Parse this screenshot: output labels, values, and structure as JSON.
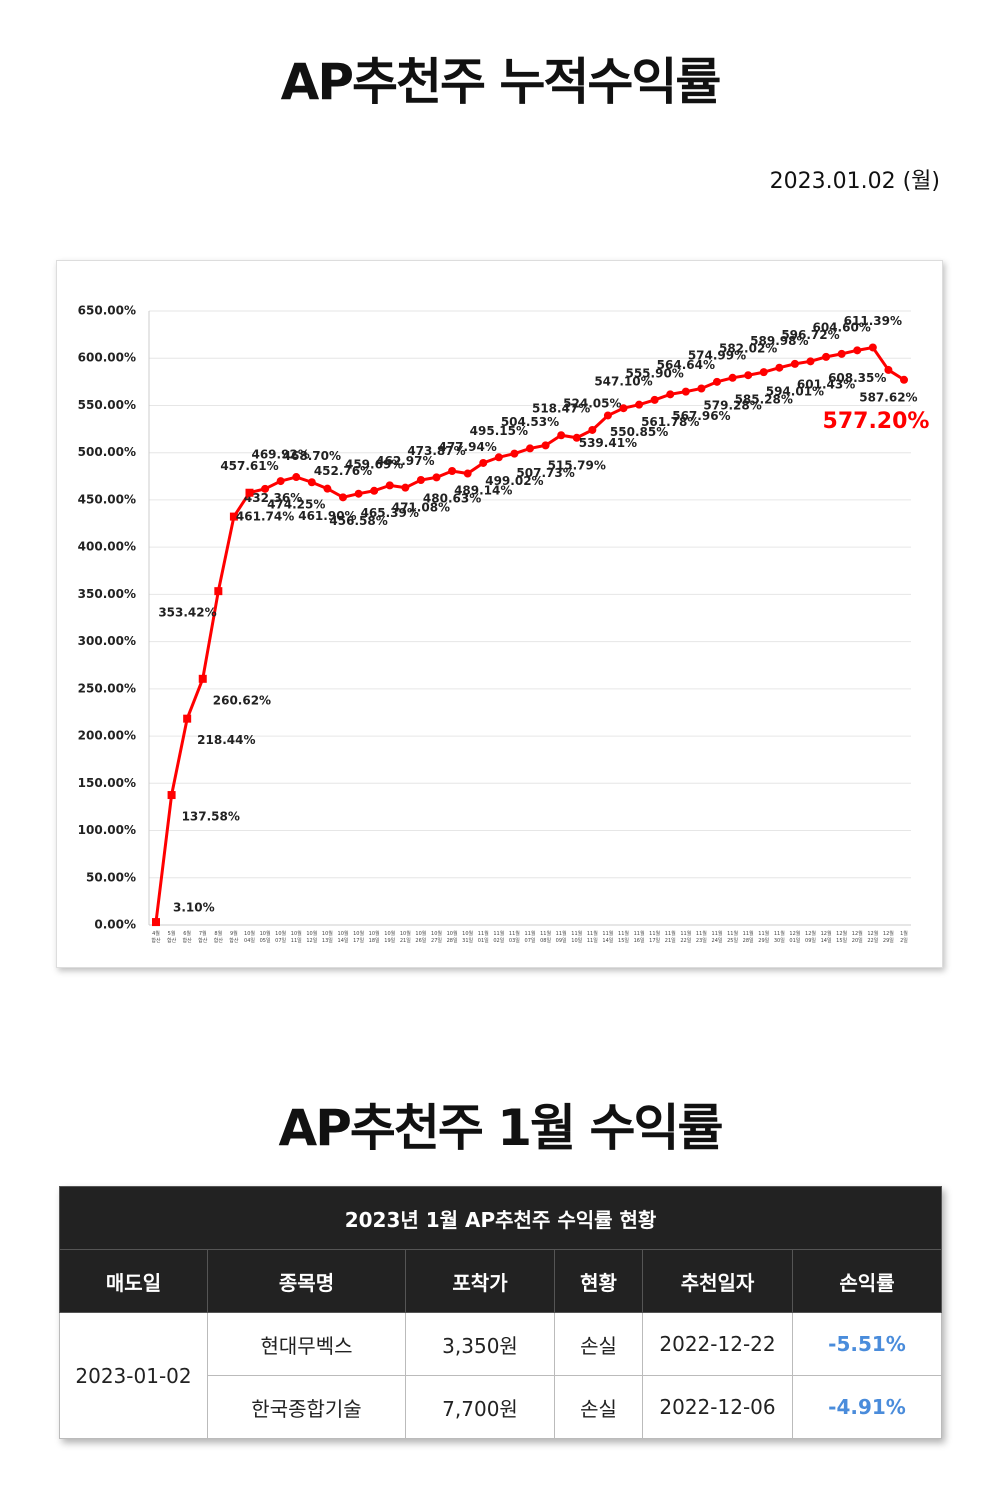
{
  "header": {
    "title": "AP추천주 누적수익률",
    "date": "2023.01.02 (월)"
  },
  "chart_data": {
    "type": "line",
    "categories": [
      "4월 합산",
      "5월 합산",
      "6월 합산",
      "7월 합산",
      "8월 합산",
      "9월 합산",
      "10월 04일",
      "10월 05일",
      "10월 07일",
      "10월 11일",
      "10월 12일",
      "10월 13일",
      "10월 14일",
      "10월 17일",
      "10월 18일",
      "10월 19일",
      "10월 21일",
      "10월 26일",
      "10월 27일",
      "10월 28일",
      "10월 31일",
      "11월 01일",
      "11월 02일",
      "11월 03일",
      "11월 07일",
      "11월 08일",
      "11월 09일",
      "11월 10일",
      "11월 11일",
      "11월 14일",
      "11월 15일",
      "11월 16일",
      "11월 17일",
      "11월 21일",
      "11월 22일",
      "11월 23일",
      "11월 24일",
      "11월 25일",
      "11월 28일",
      "11월 29일",
      "11월 30일",
      "12월 01일",
      "12월 09일",
      "12월 14일",
      "12월 15일",
      "12월 20일",
      "12월 22일",
      "12월 29일",
      "1월 2일"
    ],
    "series": [
      {
        "color": "#ff0000",
        "values": [
          3.1,
          137.58,
          218.44,
          260.62,
          353.42,
          432.36,
          457.61,
          461.74,
          469.92,
          474.25,
          468.7,
          461.9,
          452.76,
          456.58,
          459.69,
          465.39,
          462.97,
          471.08,
          473.87,
          480.63,
          477.94,
          489.14,
          495.15,
          499.02,
          504.53,
          507.73,
          518.47,
          515.79,
          524.05,
          539.41,
          547.1,
          550.85,
          555.9,
          561.78,
          564.64,
          567.96,
          574.99,
          579.28,
          582.02,
          585.28,
          589.98,
          594.01,
          596.72,
          601.43,
          604.6,
          608.35,
          611.39,
          587.62,
          577.2
        ],
        "value_labels": [
          "3.10%",
          "137.58%",
          "218.44%",
          "260.62%",
          "353.42%",
          "432.36%",
          "457.61%",
          "461.74%",
          "469.92%",
          "474.25%",
          "468.70%",
          "461.90%",
          "452.76%",
          "456.58%",
          "459.69%",
          "465.39%",
          "462.97%",
          "471.08%",
          "473.87%",
          "480.63%",
          "477.94%",
          "489.14%",
          "495.15%",
          "499.02%",
          "504.53%",
          "507.73%",
          "518.47%",
          "515.79%",
          "524.05%",
          "539.41%",
          "547.10%",
          "550.85%",
          "555.90%",
          "561.78%",
          "564.64%",
          "567.96%",
          "574.99%",
          "579.28%",
          "582.02%",
          "585.28%",
          "589.98%",
          "594.01%",
          "596.72%",
          "601.43%",
          "604.60%",
          "608.35%",
          "611.39%",
          "587.62%",
          "577.20%"
        ]
      }
    ],
    "ylim": [
      0,
      650
    ],
    "yticks": [
      {
        "value": 0,
        "label": "0.00%"
      },
      {
        "value": 50,
        "label": "50.00%"
      },
      {
        "value": 100,
        "label": "100.00%"
      },
      {
        "value": 150,
        "label": "150.00%"
      },
      {
        "value": 200,
        "label": "200.00%"
      },
      {
        "value": 250,
        "label": "250.00%"
      },
      {
        "value": 300,
        "label": "300.00%"
      },
      {
        "value": 350,
        "label": "350.00%"
      },
      {
        "value": 400,
        "label": "400.00%"
      },
      {
        "value": 450,
        "label": "450.00%"
      },
      {
        "value": 500,
        "label": "500.00%"
      },
      {
        "value": 550,
        "label": "550.00%"
      },
      {
        "value": 600,
        "label": "600.00%"
      },
      {
        "value": 650,
        "label": "650.00%"
      }
    ],
    "grid": true
  },
  "section2": {
    "title": "AP추천주 1월 수익률"
  },
  "table": {
    "title": "2023년 1월 AP추천주 수익률 현황",
    "headers": [
      "매도일",
      "종목명",
      "포착가",
      "현황",
      "추천일자",
      "손익률"
    ],
    "sell_date": "2023-01-02",
    "rows": [
      [
        "현대무벡스",
        "3,350원",
        "손실",
        "2022-12-22",
        "-5.51%"
      ],
      [
        "한국종합기술",
        "7,700원",
        "손실",
        "2022-12-06",
        "-4.91%"
      ]
    ]
  }
}
